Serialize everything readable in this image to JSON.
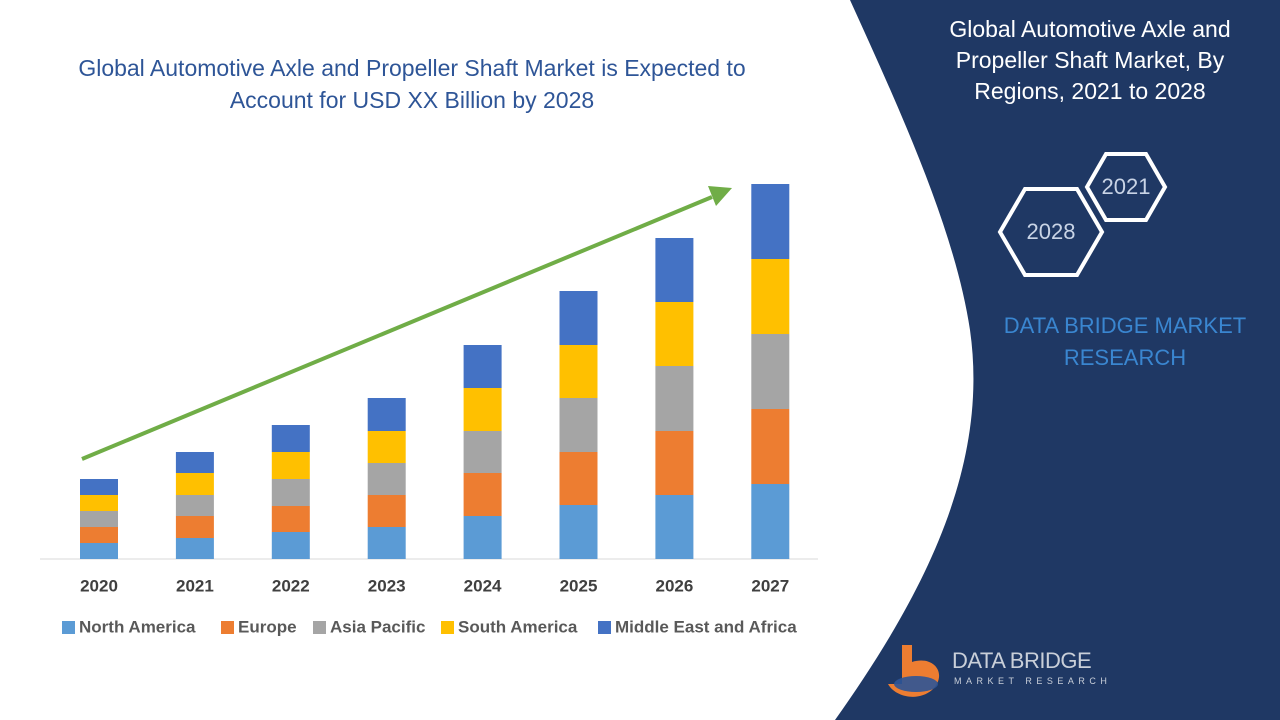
{
  "chart_data": {
    "type": "stacked-bar",
    "title": "Global Automotive Axle and Propeller Shaft Market is Expected to Account for USD XX Billion by 2028",
    "categories": [
      "2020",
      "2021",
      "2022",
      "2023",
      "2024",
      "2025",
      "2026",
      "2027"
    ],
    "series": [
      {
        "name": "North America",
        "color": "#5b9bd5",
        "values": [
          16,
          21,
          27,
          32,
          43,
          54,
          64,
          75
        ]
      },
      {
        "name": "Europe",
        "color": "#ed7d31",
        "values": [
          16,
          22,
          26,
          32,
          43,
          53,
          64,
          75
        ]
      },
      {
        "name": "Asia Pacific",
        "color": "#a5a5a5",
        "values": [
          16,
          21,
          27,
          32,
          42,
          54,
          65,
          75
        ]
      },
      {
        "name": "South America",
        "color": "#ffc000",
        "values": [
          16,
          22,
          27,
          32,
          43,
          53,
          64,
          75
        ]
      },
      {
        "name": "Middle East and Africa",
        "color": "#4472c4",
        "values": [
          16,
          21,
          27,
          33,
          43,
          54,
          64,
          75
        ]
      }
    ],
    "trend_color": "#70ad47",
    "legend": "bottom"
  },
  "sidebar": {
    "title": "Global Automotive Axle and Propeller Shaft Market, By Regions, 2021 to 2028",
    "hexagons": [
      "2021",
      "2028"
    ],
    "brand": "DATA BRIDGE MARKET RESEARCH"
  },
  "logo": {
    "name": "DATA BRIDGE",
    "tagline": "MARKET RESEARCH"
  }
}
